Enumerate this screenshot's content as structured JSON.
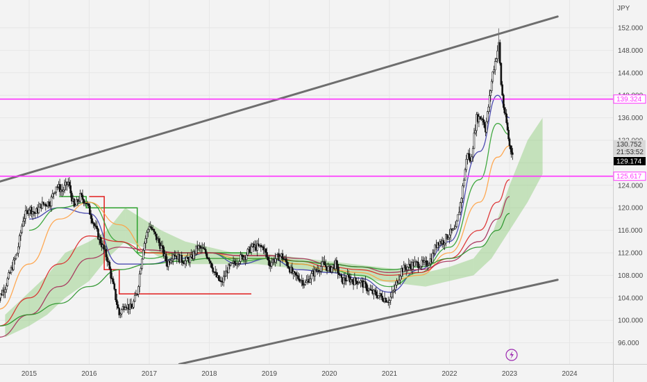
{
  "chart_data": {
    "type": "candlestick",
    "currency_label": "JPY",
    "x_ticks": [
      "2015",
      "2016",
      "2017",
      "2018",
      "2019",
      "2020",
      "2021",
      "2022",
      "2023",
      "2024"
    ],
    "y_ticks": [
      "152.000",
      "148.000",
      "144.000",
      "140.000",
      "136.000",
      "132.000",
      "128.000",
      "124.000",
      "120.000",
      "116.000",
      "112.000",
      "108.000",
      "104.000",
      "100.000",
      "96.000"
    ],
    "ylim": [
      92.2,
      154.2
    ],
    "price_tags": [
      {
        "text": "139.324",
        "kind": "level",
        "color": "#ff33ff"
      },
      {
        "text": "130.752",
        "kind": "last",
        "color": "#d8d8d8"
      },
      {
        "text": "21:53:52",
        "kind": "countdown",
        "color": "#d8d8d8"
      },
      {
        "text": "129.174",
        "kind": "close",
        "color": "#000000"
      },
      {
        "text": "125.617",
        "kind": "level",
        "color": "#ff33ff"
      }
    ],
    "horizontal_levels": [
      139.324,
      125.617
    ],
    "channel_upper": [
      [
        2014.3,
        124.0
      ],
      [
        2023.8,
        154.0
      ]
    ],
    "channel_lower": [
      [
        2017.5,
        92.2
      ],
      [
        2023.8,
        107.2
      ]
    ],
    "price": [
      [
        2014.45,
        103
      ],
      [
        2014.6,
        106
      ],
      [
        2014.8,
        112
      ],
      [
        2014.9,
        118
      ],
      [
        2015.0,
        120
      ],
      [
        2015.1,
        119
      ],
      [
        2015.2,
        120.5
      ],
      [
        2015.35,
        121
      ],
      [
        2015.45,
        124
      ],
      [
        2015.55,
        123
      ],
      [
        2015.65,
        124.5
      ],
      [
        2015.75,
        120
      ],
      [
        2015.85,
        122
      ],
      [
        2015.95,
        121
      ],
      [
        2016.05,
        118
      ],
      [
        2016.15,
        115
      ],
      [
        2016.3,
        111
      ],
      [
        2016.4,
        106
      ],
      [
        2016.5,
        101
      ],
      [
        2016.6,
        103
      ],
      [
        2016.7,
        102
      ],
      [
        2016.8,
        105
      ],
      [
        2016.9,
        113
      ],
      [
        2017.0,
        117
      ],
      [
        2017.1,
        115
      ],
      [
        2017.2,
        113
      ],
      [
        2017.3,
        110
      ],
      [
        2017.4,
        112
      ],
      [
        2017.5,
        111
      ],
      [
        2017.6,
        110.5
      ],
      [
        2017.7,
        111
      ],
      [
        2017.8,
        113
      ],
      [
        2017.9,
        112.5
      ],
      [
        2018.0,
        111
      ],
      [
        2018.1,
        108
      ],
      [
        2018.2,
        106.5
      ],
      [
        2018.3,
        109
      ],
      [
        2018.4,
        110
      ],
      [
        2018.5,
        111
      ],
      [
        2018.6,
        111.5
      ],
      [
        2018.7,
        113
      ],
      [
        2018.8,
        113
      ],
      [
        2018.9,
        113
      ],
      [
        2019.0,
        110
      ],
      [
        2019.1,
        111
      ],
      [
        2019.2,
        111.5
      ],
      [
        2019.3,
        110
      ],
      [
        2019.4,
        108
      ],
      [
        2019.5,
        107.5
      ],
      [
        2019.6,
        106.5
      ],
      [
        2019.7,
        108
      ],
      [
        2019.8,
        109
      ],
      [
        2019.9,
        110
      ],
      [
        2020.0,
        109
      ],
      [
        2020.1,
        110
      ],
      [
        2020.2,
        107
      ],
      [
        2020.3,
        107.5
      ],
      [
        2020.4,
        107
      ],
      [
        2020.5,
        107
      ],
      [
        2020.6,
        106
      ],
      [
        2020.7,
        105
      ],
      [
        2020.8,
        104.5
      ],
      [
        2020.9,
        104
      ],
      [
        2021.0,
        103.5
      ],
      [
        2021.1,
        106
      ],
      [
        2021.2,
        109
      ],
      [
        2021.3,
        109.5
      ],
      [
        2021.4,
        110
      ],
      [
        2021.5,
        110
      ],
      [
        2021.6,
        110
      ],
      [
        2021.7,
        111
      ],
      [
        2021.8,
        114
      ],
      [
        2021.9,
        114
      ],
      [
        2022.0,
        115.5
      ],
      [
        2022.1,
        116
      ],
      [
        2022.2,
        122
      ],
      [
        2022.3,
        130
      ],
      [
        2022.35,
        128
      ],
      [
        2022.45,
        136
      ],
      [
        2022.55,
        136
      ],
      [
        2022.6,
        134
      ],
      [
        2022.65,
        138
      ],
      [
        2022.72,
        144
      ],
      [
        2022.78,
        147
      ],
      [
        2022.82,
        149
      ],
      [
        2022.86,
        142
      ],
      [
        2022.9,
        138
      ],
      [
        2022.95,
        135
      ],
      [
        2023.0,
        131
      ],
      [
        2023.03,
        130.5
      ],
      [
        2023.05,
        129.2
      ]
    ],
    "moving_averages": [
      {
        "color": "#3a3aa8",
        "values": [
          [
            2015.0,
            118
          ],
          [
            2015.5,
            120
          ],
          [
            2016.0,
            119
          ],
          [
            2016.5,
            110
          ],
          [
            2017.0,
            110
          ],
          [
            2017.5,
            111
          ],
          [
            2018.0,
            112
          ],
          [
            2018.5,
            110
          ],
          [
            2019.0,
            111
          ],
          [
            2019.5,
            109
          ],
          [
            2020.0,
            108.5
          ],
          [
            2020.5,
            107.5
          ],
          [
            2021.0,
            105
          ],
          [
            2021.5,
            109
          ],
          [
            2022.0,
            114
          ],
          [
            2022.5,
            130
          ],
          [
            2022.8,
            140
          ],
          [
            2023.0,
            136
          ]
        ]
      },
      {
        "color": "#2ca02c",
        "values": [
          [
            2015.0,
            116
          ],
          [
            2015.5,
            120
          ],
          [
            2016.0,
            121
          ],
          [
            2016.5,
            114
          ],
          [
            2017.0,
            111
          ],
          [
            2017.5,
            112
          ],
          [
            2018.0,
            112
          ],
          [
            2018.5,
            110.5
          ],
          [
            2019.0,
            111
          ],
          [
            2019.5,
            110
          ],
          [
            2020.0,
            109
          ],
          [
            2020.5,
            108
          ],
          [
            2021.0,
            106
          ],
          [
            2021.5,
            108.5
          ],
          [
            2022.0,
            113
          ],
          [
            2022.5,
            125
          ],
          [
            2022.8,
            135
          ],
          [
            2023.0,
            133
          ]
        ]
      },
      {
        "color": "#ffa040",
        "values": [
          [
            2014.5,
            102
          ],
          [
            2015.0,
            110
          ],
          [
            2015.5,
            118
          ],
          [
            2016.0,
            121
          ],
          [
            2016.5,
            117
          ],
          [
            2017.0,
            112
          ],
          [
            2017.5,
            111.5
          ],
          [
            2018.0,
            112
          ],
          [
            2018.5,
            111
          ],
          [
            2019.0,
            111
          ],
          [
            2019.5,
            110
          ],
          [
            2020.0,
            109
          ],
          [
            2020.5,
            108.5
          ],
          [
            2021.0,
            107
          ],
          [
            2021.5,
            108
          ],
          [
            2022.0,
            112
          ],
          [
            2022.5,
            121
          ],
          [
            2022.8,
            129
          ],
          [
            2023.0,
            131
          ]
        ]
      },
      {
        "color": "#dc2626",
        "values": [
          [
            2014.5,
            99
          ],
          [
            2015.0,
            104
          ],
          [
            2015.5,
            110
          ],
          [
            2016.0,
            115
          ],
          [
            2016.5,
            114
          ],
          [
            2017.0,
            112
          ],
          [
            2017.5,
            112
          ],
          [
            2018.0,
            112
          ],
          [
            2018.5,
            111.5
          ],
          [
            2019.0,
            111.5
          ],
          [
            2019.5,
            110.5
          ],
          [
            2020.0,
            109.5
          ],
          [
            2020.5,
            109
          ],
          [
            2021.0,
            108
          ],
          [
            2021.5,
            108.5
          ],
          [
            2022.0,
            111
          ],
          [
            2022.5,
            116
          ],
          [
            2022.8,
            121
          ],
          [
            2023.0,
            125
          ]
        ]
      },
      {
        "color": "#a52a56",
        "values": [
          [
            2014.5,
            97
          ],
          [
            2015.0,
            101
          ],
          [
            2015.5,
            106
          ],
          [
            2016.0,
            111
          ],
          [
            2016.5,
            113
          ],
          [
            2017.0,
            112.5
          ],
          [
            2017.5,
            112
          ],
          [
            2018.0,
            112
          ],
          [
            2018.5,
            111.5
          ],
          [
            2019.0,
            111.5
          ],
          [
            2019.5,
            111
          ],
          [
            2020.0,
            110
          ],
          [
            2020.5,
            109.5
          ],
          [
            2021.0,
            108.5
          ],
          [
            2021.5,
            109
          ],
          [
            2022.0,
            110.5
          ],
          [
            2022.5,
            114
          ],
          [
            2022.8,
            118
          ],
          [
            2023.0,
            122
          ]
        ]
      },
      {
        "color": "#249124",
        "values": [
          [
            2014.5,
            99
          ],
          [
            2015.0,
            101
          ],
          [
            2015.5,
            103
          ],
          [
            2016.0,
            106
          ],
          [
            2016.5,
            109
          ],
          [
            2017.0,
            110
          ],
          [
            2017.5,
            110.5
          ],
          [
            2018.0,
            111
          ],
          [
            2018.5,
            111
          ],
          [
            2019.0,
            111
          ],
          [
            2019.5,
            110.5
          ],
          [
            2020.0,
            110
          ],
          [
            2020.5,
            109.5
          ],
          [
            2021.0,
            109
          ],
          [
            2021.5,
            109.5
          ],
          [
            2022.0,
            111
          ],
          [
            2022.5,
            113
          ],
          [
            2022.8,
            116
          ],
          [
            2023.0,
            119
          ]
        ]
      }
    ],
    "step_lines": [
      {
        "color": "#2ca02c",
        "points": [
          [
            2015.5,
            122
          ],
          [
            2015.95,
            122
          ],
          [
            2015.95,
            120
          ],
          [
            2016.8,
            120
          ],
          [
            2016.8,
            112
          ],
          [
            2018.7,
            112
          ],
          [
            2018.7,
            113
          ]
        ]
      },
      {
        "color": "#e11d1d",
        "points": [
          [
            2016.0,
            122
          ],
          [
            2016.25,
            122
          ],
          [
            2016.25,
            109
          ],
          [
            2016.5,
            109
          ],
          [
            2016.5,
            104.7
          ],
          [
            2018.7,
            104.7
          ]
        ]
      }
    ],
    "ichimoku_cloud": [
      [
        2014.6,
        97,
        101
      ],
      [
        2015.0,
        99,
        105
      ],
      [
        2015.3,
        101,
        108
      ],
      [
        2015.6,
        104,
        112
      ],
      [
        2016.0,
        107,
        114
      ],
      [
        2016.3,
        111,
        116
      ],
      [
        2016.6,
        114,
        120
      ],
      [
        2016.9,
        113,
        118
      ],
      [
        2017.2,
        111,
        116
      ],
      [
        2017.6,
        110,
        114
      ],
      [
        2018.0,
        110,
        113
      ],
      [
        2018.4,
        110,
        112
      ],
      [
        2018.8,
        110,
        112
      ],
      [
        2019.2,
        109.5,
        111.5
      ],
      [
        2019.6,
        109,
        111
      ],
      [
        2020.0,
        108.5,
        110.5
      ],
      [
        2020.4,
        108,
        110
      ],
      [
        2020.8,
        107,
        109.5
      ],
      [
        2021.2,
        106.5,
        109
      ],
      [
        2021.6,
        106,
        108.5
      ],
      [
        2022.0,
        107,
        109.5
      ],
      [
        2022.4,
        108,
        111
      ],
      [
        2022.7,
        111,
        115
      ],
      [
        2023.0,
        116,
        124
      ],
      [
        2023.3,
        121,
        132
      ],
      [
        2023.55,
        126,
        136
      ]
    ]
  }
}
